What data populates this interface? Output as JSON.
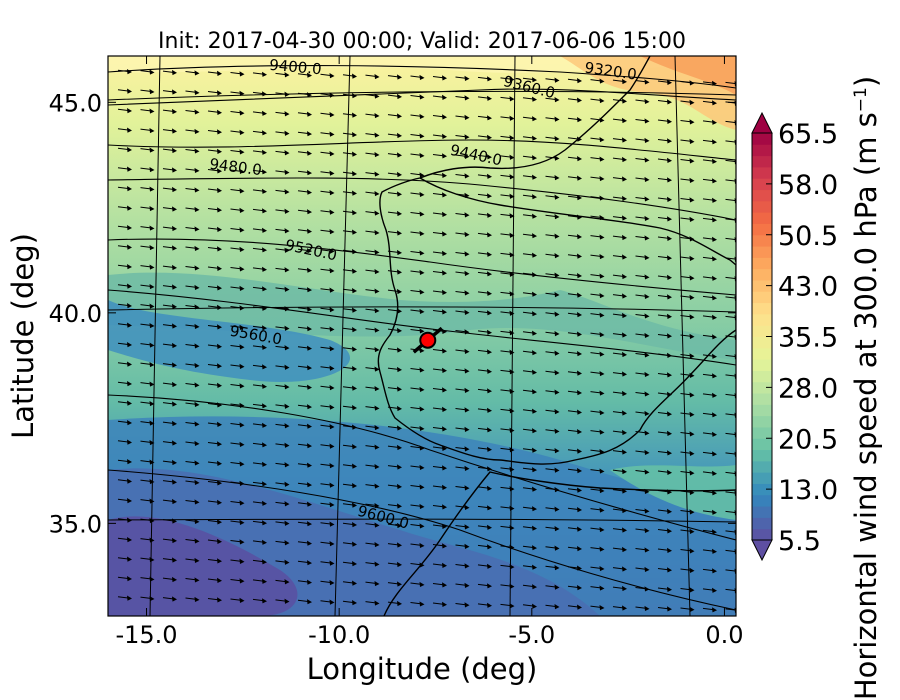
{
  "chart_data": {
    "type": "map",
    "title": "Init: 2017-04-30 00:00; Valid: 2017-06-06 15:00",
    "xlabel": "Longitude (deg)",
    "ylabel": "Latitude (deg)",
    "xlim": [
      -16,
      0.3
    ],
    "ylim": [
      32.8,
      46.1
    ],
    "xticks": [
      -15.0,
      -10.0,
      -5.0,
      0.0
    ],
    "xtick_labels": [
      "-15.0",
      "-10.0",
      "-5.0",
      "0.0"
    ],
    "yticks": [
      35.0,
      40.0,
      45.0
    ],
    "ytick_labels": [
      "35.0",
      "40.0",
      "45.0"
    ],
    "colorbar": {
      "label_main": "Horizontal wind speed at 300.0 hPa (m s",
      "label_exponent": "−1",
      "label_close": ")",
      "levels": [
        5.5,
        13.0,
        20.5,
        28.0,
        35.5,
        43.0,
        50.5,
        58.0,
        65.5
      ],
      "level_labels": [
        "5.5",
        "13.0",
        "20.5",
        "28.0",
        "35.5",
        "43.0",
        "50.5",
        "58.0",
        "65.5"
      ],
      "colors": [
        "#5e4fa2",
        "#3288bd",
        "#66c2a5",
        "#abdda4",
        "#e6f598",
        "#fee08b",
        "#fdae61",
        "#f46d43",
        "#d53e4f",
        "#9e0142"
      ],
      "extend": "both"
    },
    "contour_labels": [
      "9320.0",
      "9360.0",
      "9400.0",
      "9440.0",
      "9480.0",
      "9520.0",
      "9560.0",
      "9600.0"
    ],
    "marker": {
      "lon": -7.7,
      "lat": 39.35,
      "color": "#ff0000"
    },
    "wind_direction": "mostly eastward",
    "grid": true
  }
}
